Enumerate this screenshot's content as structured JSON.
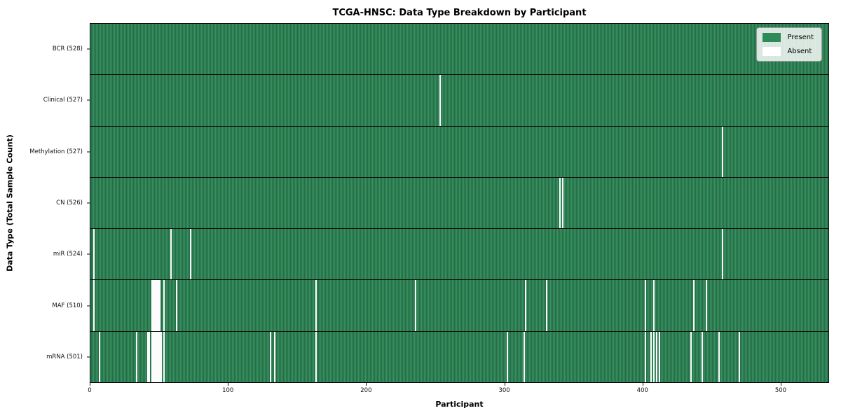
{
  "chart_data": {
    "type": "heatmap",
    "title": "TCGA-HNSC: Data Type Breakdown by Participant",
    "xlabel": "Participant",
    "ylabel": "Data Type (Total Sample Count)",
    "xlim": [
      0,
      535
    ],
    "x_ticks": [
      0,
      100,
      200,
      300,
      400,
      500
    ],
    "total_participants": 528,
    "grid": false,
    "legend_position": "upper right",
    "legend": [
      {
        "label": "Present",
        "color": "#2e8b57"
      },
      {
        "label": "Absent",
        "color": "#ffffff"
      }
    ],
    "rows": [
      {
        "key": "bcr",
        "label": "BCR (528)",
        "data_type": "BCR",
        "count": 528,
        "absent": []
      },
      {
        "key": "clinical",
        "label": "Clinical (527)",
        "data_type": "Clinical",
        "count": 527,
        "absent": [
          253
        ]
      },
      {
        "key": "methylation",
        "label": "Methylation (527)",
        "data_type": "Methylation",
        "count": 527,
        "absent": [
          458
        ]
      },
      {
        "key": "cn",
        "label": "CN (526)",
        "data_type": "CN",
        "count": 526,
        "absent": [
          340,
          342
        ]
      },
      {
        "key": "mir",
        "label": "miR (524)",
        "data_type": "miR",
        "count": 524,
        "absent": [
          2,
          58,
          72,
          458
        ]
      },
      {
        "key": "maf",
        "label": "MAF (510)",
        "data_type": "MAF",
        "count": 510,
        "absent": [
          2,
          44,
          45,
          46,
          47,
          48,
          49,
          50,
          53,
          62,
          163,
          235,
          315,
          330,
          402,
          408,
          437,
          446
        ]
      },
      {
        "key": "mrna",
        "label": "mRNA (501)",
        "data_type": "mRNA",
        "count": 501,
        "absent": [
          6,
          33,
          41,
          42,
          44,
          45,
          46,
          47,
          48,
          49,
          50,
          51,
          53,
          130,
          133,
          163,
          302,
          314,
          402,
          406,
          408,
          410,
          412,
          435,
          443,
          455,
          470
        ]
      }
    ]
  }
}
